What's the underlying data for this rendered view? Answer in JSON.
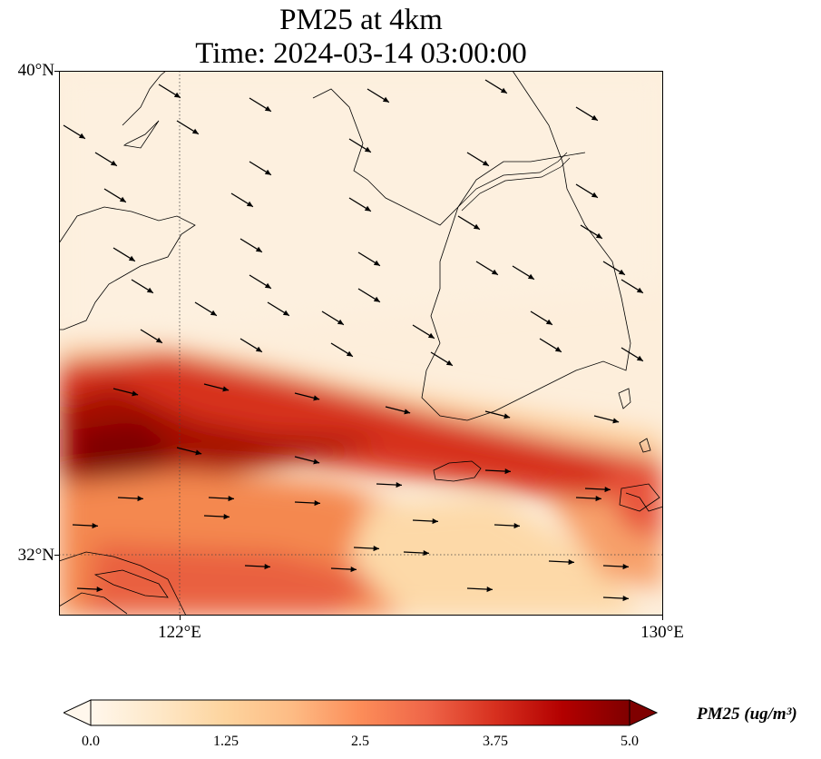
{
  "title": {
    "line1": "PM25 at 4km",
    "line2": "Time: 2024-03-14 03:00:00"
  },
  "axes": {
    "lat_ticks": [
      {
        "value": 40,
        "label": "40°N"
      },
      {
        "value": 32,
        "label": "32°N"
      }
    ],
    "lon_ticks": [
      {
        "value": 122,
        "label": "122°E"
      },
      {
        "value": 130,
        "label": "130°E"
      }
    ]
  },
  "map_extent": {
    "lon_min": 120,
    "lon_max": 130,
    "lat_min": 31,
    "lat_max": 40
  },
  "gridlines": {
    "lons": [
      122
    ],
    "lats": [
      32
    ]
  },
  "colorbar": {
    "label": "PM25 (ug/m³)",
    "colormap": "OrRd",
    "min": 0,
    "max": 5,
    "extend": "both",
    "ticks": [
      "0.0",
      "1.25",
      "2.5",
      "3.75",
      "5.0"
    ],
    "colors": [
      "#fff7ec",
      "#fee8c8",
      "#fdd49e",
      "#fdbb84",
      "#fc8d59",
      "#ef6548",
      "#d7301f",
      "#b30000",
      "#7f0000"
    ]
  },
  "wind_arrows": {
    "color": "#000000"
  }
}
